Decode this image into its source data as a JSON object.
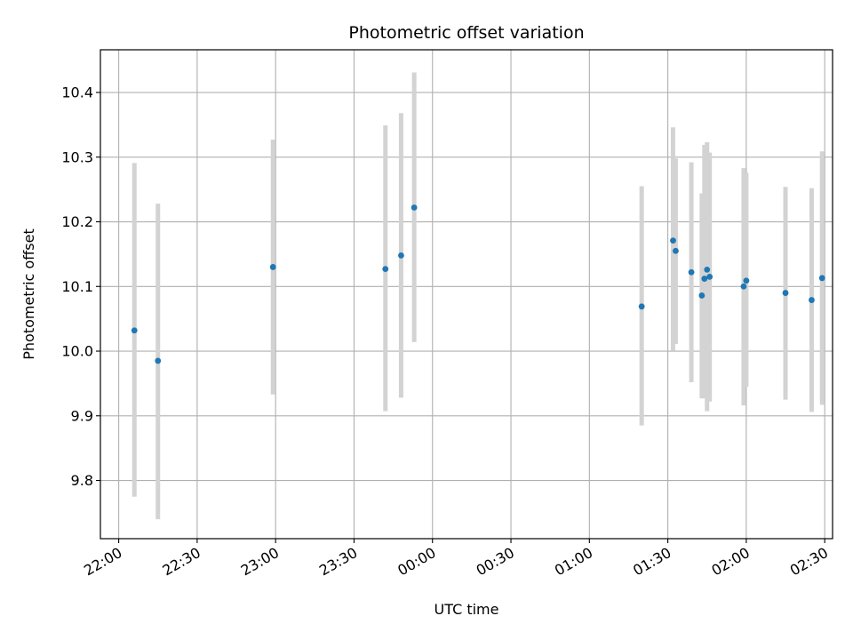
{
  "chart_data": {
    "type": "scatter",
    "title": "Photometric offset variation",
    "xlabel": "UTC time",
    "ylabel": "Photometric offset",
    "x_ticks": [
      "22:00",
      "22:30",
      "23:00",
      "23:30",
      "00:00",
      "00:30",
      "01:00",
      "01:30",
      "02:00",
      "02:30"
    ],
    "y_ticks": [
      "9.8",
      "9.9",
      "10.0",
      "10.1",
      "10.2",
      "10.3",
      "10.4"
    ],
    "xlim": [
      "21:53",
      "02:33"
    ],
    "ylim": [
      9.71,
      10.466
    ],
    "grid": true,
    "colors": {
      "points": "#1f77b4",
      "errorbars": "#d3d3d3",
      "grid": "#b0b0b0"
    },
    "points": [
      {
        "x": "22:06",
        "y": 10.032,
        "low": 9.775,
        "high": 10.291
      },
      {
        "x": "22:15",
        "y": 9.985,
        "low": 9.74,
        "high": 10.228
      },
      {
        "x": "22:59",
        "y": 10.13,
        "low": 9.933,
        "high": 10.327
      },
      {
        "x": "23:42",
        "y": 10.127,
        "low": 9.907,
        "high": 10.349
      },
      {
        "x": "23:48",
        "y": 10.148,
        "low": 9.928,
        "high": 10.368
      },
      {
        "x": "23:53",
        "y": 10.222,
        "low": 10.014,
        "high": 10.431
      },
      {
        "x": "01:20",
        "y": 10.069,
        "low": 9.885,
        "high": 10.255
      },
      {
        "x": "01:32",
        "y": 10.171,
        "low": 10.001,
        "high": 10.346
      },
      {
        "x": "01:33",
        "y": 10.155,
        "low": 10.011,
        "high": 10.298
      },
      {
        "x": "01:39",
        "y": 10.122,
        "low": 9.952,
        "high": 10.292
      },
      {
        "x": "01:43",
        "y": 10.086,
        "low": 9.927,
        "high": 10.244
      },
      {
        "x": "01:44",
        "y": 10.112,
        "low": 9.927,
        "high": 10.319
      },
      {
        "x": "01:45",
        "y": 10.126,
        "low": 9.907,
        "high": 10.323
      },
      {
        "x": "01:46",
        "y": 10.115,
        "low": 9.922,
        "high": 10.307
      },
      {
        "x": "01:59",
        "y": 10.1,
        "low": 9.916,
        "high": 10.283
      },
      {
        "x": "02:00",
        "y": 10.109,
        "low": 9.945,
        "high": 10.276
      },
      {
        "x": "02:15",
        "y": 10.09,
        "low": 9.925,
        "high": 10.254
      },
      {
        "x": "02:25",
        "y": 10.079,
        "low": 9.906,
        "high": 10.252
      },
      {
        "x": "02:29",
        "y": 10.113,
        "low": 9.917,
        "high": 10.309
      }
    ]
  }
}
